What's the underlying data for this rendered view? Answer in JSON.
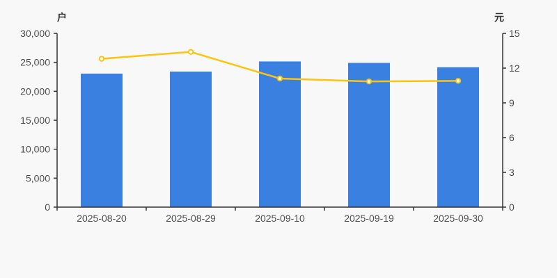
{
  "page": {
    "background": "#f8f8f8"
  },
  "chart_data": {
    "type": "bar-line-combo",
    "title": "",
    "legend": false,
    "grid_lines": false,
    "categories": [
      "2025-08-20",
      "2025-08-29",
      "2025-09-10",
      "2025-09-19",
      "2025-09-30"
    ],
    "bar_series": {
      "axis": "left",
      "values": [
        23050,
        23400,
        25150,
        24900,
        24150
      ],
      "color": "#3a80e1"
    },
    "line_series": {
      "axis": "right",
      "values": [
        12.8,
        13.4,
        11.1,
        10.85,
        10.9
      ],
      "color": "#fbc40f",
      "marker": "hollow-circle",
      "marker_fill": "#ffffff"
    },
    "left_axis": {
      "name": "户",
      "min": 0,
      "max": 30000,
      "interval": 5000,
      "tick_labels": [
        "30,000",
        "25,000",
        "20,000",
        "15,000",
        "10,000",
        "5,000",
        "0"
      ]
    },
    "right_axis": {
      "name": "元",
      "min": 0,
      "max": 15,
      "interval": 3,
      "tick_labels": [
        "15",
        "12",
        "9",
        "6",
        "3",
        "0"
      ]
    },
    "axis_line_color": "#333333",
    "tick_label_color": "#4d4d4d",
    "axis_name_color": "#333333"
  }
}
